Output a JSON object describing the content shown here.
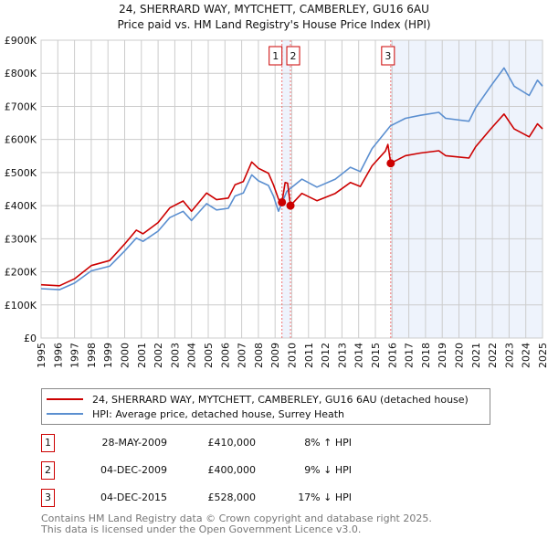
{
  "chart_data": {
    "type": "line",
    "title": "24, SHERRARD WAY, MYTCHETT, CAMBERLEY, GU16 6AU",
    "subtitle": "Price paid vs. HM Land Registry's House Price Index (HPI)",
    "xlim": [
      1995,
      2025
    ],
    "ylim": [
      0,
      900000
    ],
    "x_ticks": [
      "1995",
      "1996",
      "1997",
      "1998",
      "1999",
      "2000",
      "2001",
      "2002",
      "2003",
      "2004",
      "2005",
      "2006",
      "2007",
      "2008",
      "2009",
      "2010",
      "2011",
      "2012",
      "2013",
      "2014",
      "2015",
      "2016",
      "2017",
      "2018",
      "2019",
      "2020",
      "2021",
      "2022",
      "2023",
      "2024",
      "2025"
    ],
    "y_ticks": [
      {
        "value": 0,
        "label": "£0"
      },
      {
        "value": 100000,
        "label": "£100K"
      },
      {
        "value": 200000,
        "label": "£200K"
      },
      {
        "value": 300000,
        "label": "£300K"
      },
      {
        "value": 400000,
        "label": "£400K"
      },
      {
        "value": 500000,
        "label": "£500K"
      },
      {
        "value": 600000,
        "label": "£600K"
      },
      {
        "value": 700000,
        "label": "£700K"
      },
      {
        "value": 800000,
        "label": "£800K"
      },
      {
        "value": 900000,
        "label": "£900K"
      }
    ],
    "grid": true,
    "series": [
      {
        "name": "24, SHERRARD WAY, MYTCHETT, CAMBERLEY, GU16 6AU (detached house)",
        "color": "#cc0000",
        "x": [
          1995.0,
          1996.1,
          1997.0,
          1998.0,
          1999.1,
          2000.0,
          2000.7,
          2001.1,
          2002.0,
          2002.7,
          2003.5,
          2004.0,
          2004.9,
          2005.5,
          2006.2,
          2006.6,
          2007.1,
          2007.6,
          2008.0,
          2008.6,
          2008.9,
          2009.2,
          2009.41,
          2009.6,
          2009.75,
          2009.92,
          2010.6,
          2011.5,
          2012.6,
          2013.5,
          2014.1,
          2014.8,
          2015.6,
          2015.75,
          2015.92,
          2016.8,
          2017.7,
          2018.8,
          2019.2,
          2020.6,
          2021.0,
          2021.9,
          2022.7,
          2023.3,
          2024.2,
          2024.7,
          2025.0
        ],
        "y": [
          161000,
          158000,
          179000,
          219000,
          234000,
          284000,
          326000,
          315000,
          349000,
          393000,
          414000,
          383000,
          438000,
          418000,
          423000,
          463000,
          473000,
          532000,
          513000,
          498000,
          463000,
          420000,
          410000,
          470000,
          468000,
          400000,
          437000,
          415000,
          437000,
          470000,
          458000,
          520000,
          565000,
          585000,
          528000,
          551000,
          559000,
          566000,
          551000,
          544000,
          578000,
          632000,
          677000,
          632000,
          608000,
          647000,
          632000
        ]
      },
      {
        "name": "HPI: Average price, detached house, Surrey Heath",
        "color": "#5b8fd0",
        "x": [
          1995.0,
          1996.1,
          1997.0,
          1998.0,
          1999.1,
          2000.0,
          2000.7,
          2001.1,
          2002.0,
          2002.7,
          2003.5,
          2004.0,
          2004.9,
          2005.5,
          2006.2,
          2006.6,
          2007.1,
          2007.6,
          2008.0,
          2008.6,
          2008.9,
          2009.2,
          2009.7,
          2010.6,
          2011.5,
          2012.6,
          2013.5,
          2014.1,
          2014.8,
          2015.9,
          2016.8,
          2017.7,
          2018.8,
          2019.2,
          2020.6,
          2021.0,
          2021.9,
          2022.7,
          2023.3,
          2024.2,
          2024.7,
          2025.0
        ],
        "y": [
          149000,
          146000,
          166000,
          203000,
          217000,
          263000,
          302000,
          292000,
          323000,
          364000,
          383000,
          355000,
          406000,
          387000,
          392000,
          429000,
          438000,
          493000,
          475000,
          461000,
          429000,
          383000,
          443000,
          480000,
          456000,
          480000,
          516000,
          503000,
          572000,
          641000,
          664000,
          673000,
          682000,
          664000,
          655000,
          696000,
          761000,
          816000,
          761000,
          733000,
          779000,
          761000
        ]
      }
    ],
    "sales": [
      {
        "label": "1",
        "x": 2009.41,
        "price": 410000,
        "date": "28-MAY-2009",
        "price_text": "£410,000",
        "hpi_text": "8% ↑ HPI"
      },
      {
        "label": "2",
        "x": 2009.92,
        "price": 400000,
        "date": "04-DEC-2009",
        "price_text": "£400,000",
        "hpi_text": "9% ↓ HPI"
      },
      {
        "label": "3",
        "x": 2015.92,
        "price": 528000,
        "date": "04-DEC-2015",
        "price_text": "£528,000",
        "hpi_text": "17% ↓ HPI"
      }
    ],
    "legend": [
      "24, SHERRARD WAY, MYTCHETT, CAMBERLEY, GU16 6AU (detached house)",
      "HPI: Average price, detached house, Surrey Heath"
    ],
    "legend_placement": "below"
  },
  "footer": {
    "line1": "Contains HM Land Registry data © Crown copyright and database right 2025.",
    "line2": "This data is licensed under the Open Government Licence v3.0."
  }
}
